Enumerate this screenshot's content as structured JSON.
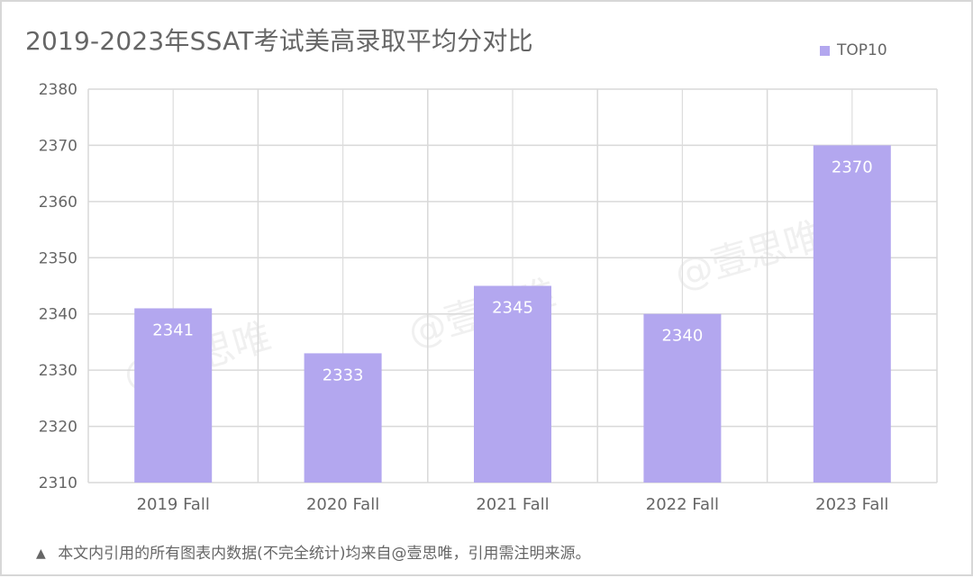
{
  "page": {
    "title": "2019-2023年SSAT考试美高录取平均分对比",
    "legend": {
      "label": "TOP10",
      "color": "#b3a7ef"
    },
    "footnote": {
      "symbol": "▲",
      "text": "本文内引用的所有图表内数据(不完全统计)均来自@壹思唯，引用需注明来源。"
    },
    "watermark_text": "@壹思唯"
  },
  "chart_data": {
    "type": "bar",
    "title": "2019-2023年SSAT考试美高录取平均分对比",
    "xlabel": "",
    "ylabel": "",
    "categories": [
      "2019 Fall",
      "2020 Fall",
      "2021 Fall",
      "2022 Fall",
      "2023 Fall"
    ],
    "series": [
      {
        "name": "TOP10",
        "values": [
          2341,
          2333,
          2345,
          2340,
          2370
        ],
        "color": "#b3a7ef"
      }
    ],
    "ylim": [
      2310,
      2380
    ],
    "y_ticks": [
      2310,
      2320,
      2330,
      2340,
      2350,
      2360,
      2370,
      2380
    ],
    "grid": true,
    "legend_position": "top-right"
  }
}
